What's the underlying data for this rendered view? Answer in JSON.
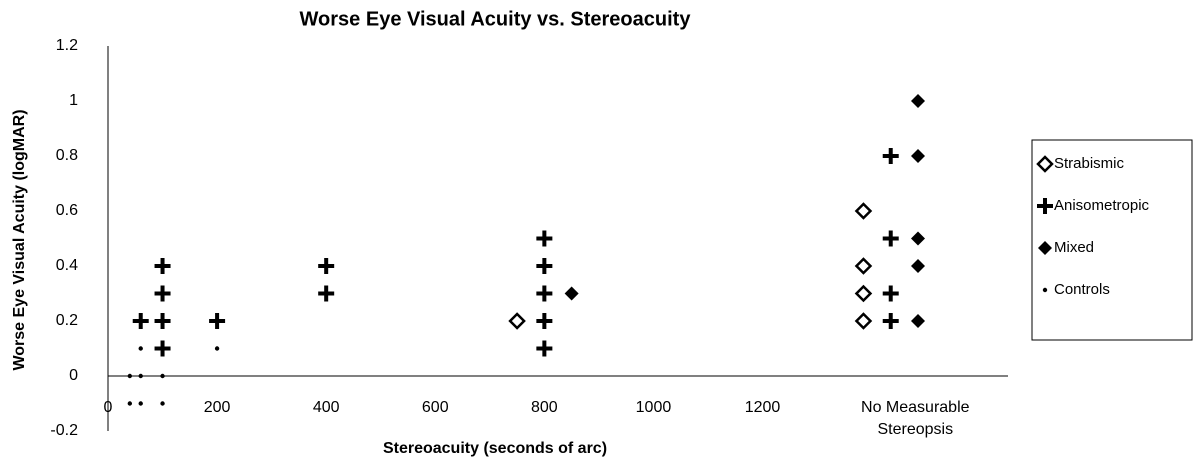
{
  "chart_data": {
    "type": "scatter",
    "title": "Worse Eye Visual Acuity vs. Stereoacuity",
    "x_label": "Stereoacuity (seconds of arc)",
    "y_label": "Worse Eye Visual Acuity (logMAR)",
    "xlim": [
      0,
      1650
    ],
    "ylim": [
      -0.2,
      1.2
    ],
    "xticks": [
      0,
      200,
      400,
      600,
      800,
      1000,
      1200,
      {
        "value": 1480,
        "label": "No Measurable Stereopsis"
      }
    ],
    "yticks": [
      -0.2,
      0,
      0.2,
      0.4,
      0.6,
      0.8,
      1,
      1.2
    ],
    "grid": false,
    "legend": "right",
    "series": [
      {
        "name": "Strabismic",
        "color": "#000000",
        "marker": "diamond-open",
        "x": [
          750,
          1385,
          1385,
          1385,
          1385
        ],
        "y": [
          0.2,
          0.2,
          0.3,
          0.4,
          0.6
        ]
      },
      {
        "name": "Anisometropic",
        "color": "#000000",
        "marker": "plus",
        "x": [
          60,
          100,
          100,
          100,
          100,
          200,
          400,
          400,
          800,
          800,
          800,
          800,
          800,
          1435,
          1435,
          1435,
          1435
        ],
        "y": [
          0.2,
          0.1,
          0.2,
          0.3,
          0.4,
          0.2,
          0.3,
          0.4,
          0.1,
          0.2,
          0.3,
          0.4,
          0.5,
          0.2,
          0.3,
          0.5,
          0.8
        ]
      },
      {
        "name": "Mixed",
        "color": "#000000",
        "marker": "diamond",
        "x": [
          850,
          1485,
          1485,
          1485,
          1485,
          1485
        ],
        "y": [
          0.3,
          0.2,
          0.4,
          0.5,
          0.8,
          1
        ]
      },
      {
        "name": "Controls",
        "color": "#000000",
        "marker": "dot",
        "x": [
          40,
          60,
          100,
          40,
          60,
          100,
          60,
          200
        ],
        "y": [
          -0.1,
          -0.1,
          -0.1,
          0,
          0,
          0,
          0.1,
          0.1
        ]
      }
    ]
  }
}
